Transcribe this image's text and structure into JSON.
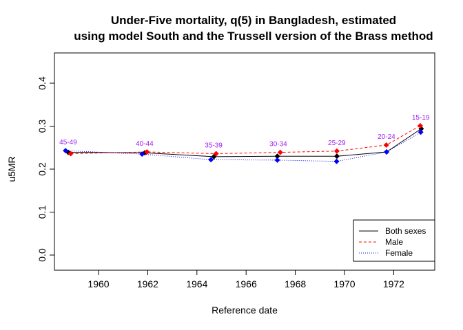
{
  "chart_data": {
    "type": "line",
    "title": [
      "Under-Five mortality, q(5) in Bangladesh, estimated",
      "using model South and the Trussell version of the Brass method"
    ],
    "xlabel": "Reference date",
    "ylabel": "u5MR",
    "xlim": [
      1958.3,
      1973.8
    ],
    "ylim": [
      -0.02,
      0.47
    ],
    "xticks": [
      1960,
      1962,
      1964,
      1966,
      1968,
      1970,
      1972
    ],
    "yticks": [
      "0.0",
      "0.1",
      "0.2",
      "0.3",
      "0.4"
    ],
    "grid": false,
    "legend_position": "bottom-right",
    "point_labels": [
      "45-49",
      "40-44",
      "35-39",
      "30-34",
      "25-29",
      "20-24",
      "15-19"
    ],
    "point_label_color": "#A020F0",
    "series": [
      {
        "name": "Both sexes",
        "color": "#000000",
        "line": "solid",
        "x": [
          1958.77,
          1961.88,
          1964.69,
          1967.27,
          1969.69,
          1971.71,
          1973.12
        ],
        "y": [
          0.239,
          0.238,
          0.229,
          0.23,
          0.23,
          0.24,
          0.294
        ]
      },
      {
        "name": "Male",
        "color": "#FF0000",
        "line": "dashed",
        "x": [
          1958.87,
          1961.97,
          1964.78,
          1967.39,
          1969.69,
          1971.7,
          1973.08
        ],
        "y": [
          0.236,
          0.24,
          0.236,
          0.239,
          0.242,
          0.256,
          0.301
        ]
      },
      {
        "name": "Female",
        "color": "#0000FF",
        "line": "dotted",
        "x": [
          1958.66,
          1961.77,
          1964.57,
          1967.27,
          1969.68,
          1971.71,
          1973.1
        ],
        "y": [
          0.243,
          0.235,
          0.222,
          0.221,
          0.218,
          0.24,
          0.286
        ]
      }
    ]
  }
}
